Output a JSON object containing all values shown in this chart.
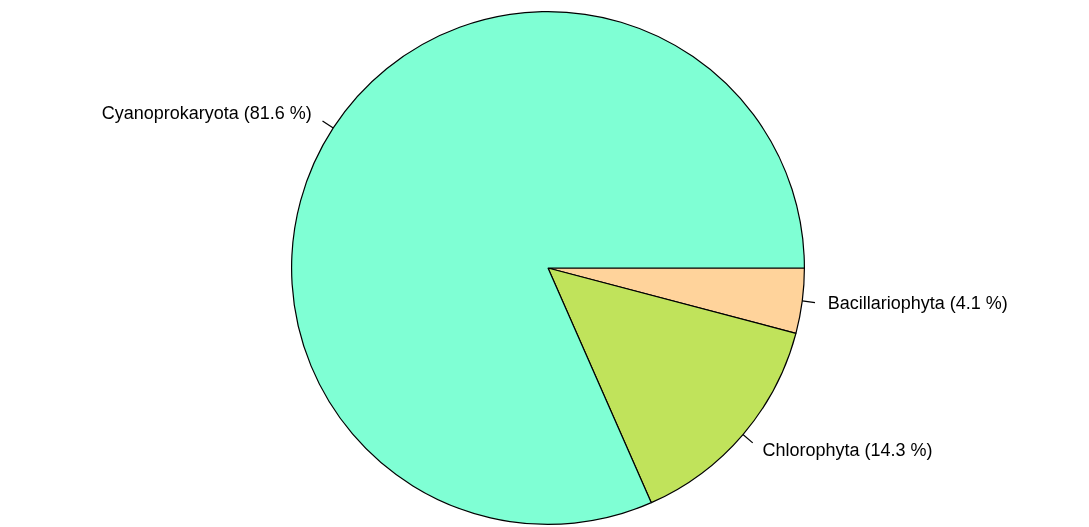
{
  "chart_data": {
    "type": "pie",
    "categories": [
      "Cyanoprokaryota (81.6 %)",
      "Chlorophyta (14.3 %)",
      "Bacillariophyta (4.1 %)"
    ],
    "values": [
      81.6,
      14.3,
      4.1
    ],
    "colors": [
      "#7fffd4",
      "#c0e35b",
      "#ffd39b"
    ]
  }
}
